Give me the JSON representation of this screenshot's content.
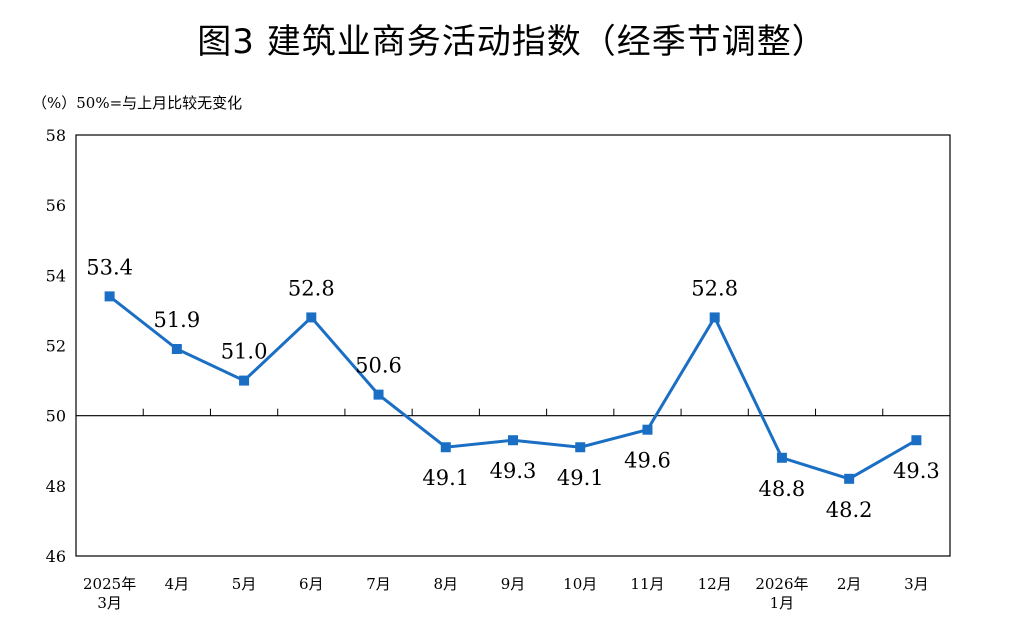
{
  "title": "图3  建筑业商务活动指数（经季节调整）",
  "unit_note": "（%）50%=与上月比较无变化",
  "colors": {
    "series": "#1a6fc4",
    "axis": "#000000",
    "baseline": "#000000"
  },
  "chart_data": {
    "type": "line",
    "title": "图3  建筑业商务活动指数（经季节调整）",
    "ylabel": "（%）",
    "xlabel": "",
    "ylim": [
      46,
      58
    ],
    "yticks": [
      46,
      48,
      50,
      52,
      54,
      56,
      58
    ],
    "reference_line": 50,
    "grid": false,
    "categories": [
      [
        "2025年",
        "3月"
      ],
      [
        "4月"
      ],
      [
        "5月"
      ],
      [
        "6月"
      ],
      [
        "7月"
      ],
      [
        "8月"
      ],
      [
        "9月"
      ],
      [
        "10月"
      ],
      [
        "11月"
      ],
      [
        "12月"
      ],
      [
        "2026年",
        "1月"
      ],
      [
        "2月"
      ],
      [
        "3月"
      ]
    ],
    "values": [
      53.4,
      51.9,
      51.0,
      52.8,
      50.6,
      49.1,
      49.3,
      49.1,
      49.6,
      52.8,
      48.8,
      48.2,
      49.3
    ],
    "data_labels": [
      "53.4",
      "51.9",
      "51.0",
      "52.8",
      "50.6",
      "49.1",
      "49.3",
      "49.1",
      "49.6",
      "52.8",
      "48.8",
      "48.2",
      "49.3"
    ]
  }
}
